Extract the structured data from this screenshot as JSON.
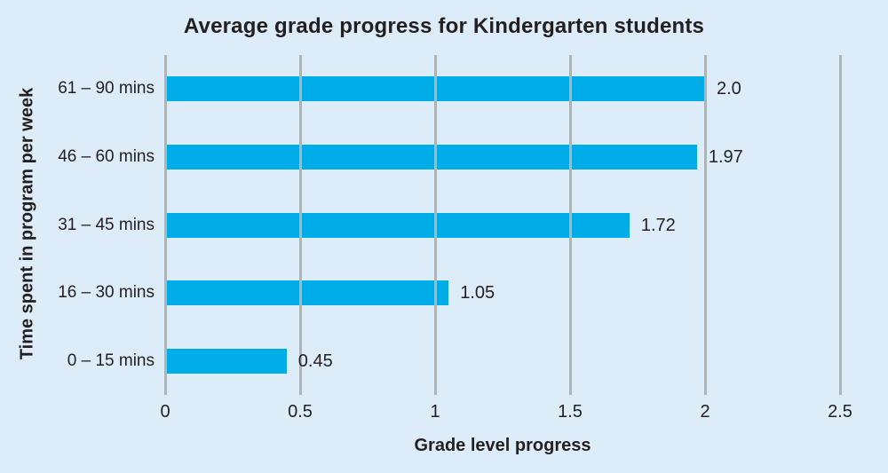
{
  "colors": {
    "background": "#dcecf9",
    "bar": "#00ade9",
    "gridline": "#b3b3b3",
    "text": "#231f20"
  },
  "chart_data": {
    "type": "bar",
    "orientation": "horizontal",
    "title": "Average grade progress for Kindergarten students",
    "xlabel": "Grade level progress",
    "ylabel": "Time spent in program per week",
    "categories": [
      "61 – 90 mins",
      "46 – 60 mins",
      "31 – 45 mins",
      "16 – 30 mins",
      "0 – 15 mins"
    ],
    "values": [
      2.0,
      1.97,
      1.72,
      1.05,
      0.45
    ],
    "value_labels": [
      "2.0",
      "1.97",
      "1.72",
      "1.05",
      "0.45"
    ],
    "xlim": [
      0,
      2.5
    ],
    "xticks": [
      0,
      0.5,
      1,
      1.5,
      2,
      2.5
    ],
    "xtick_labels": [
      "0",
      "0.5",
      "1",
      "1.5",
      "2",
      "2.5"
    ],
    "grid": "vertical",
    "legend": "none"
  }
}
